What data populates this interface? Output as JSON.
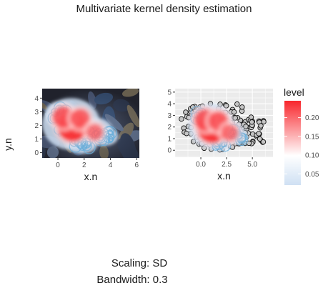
{
  "title": "Multivariate kernel density estimation",
  "y_axis_label": "y.n",
  "captions": {
    "scaling": "Scaling: SD",
    "bandwidth": "Bandwidth: 0.3"
  },
  "colors": {
    "level_high": "#f8262c",
    "level_mid": "#ffffff",
    "level_low": "#cfe0f3",
    "contour_line": "#6aaeda",
    "point_fill": "#c4c4c4",
    "panel_bg": "#ebebeb",
    "photo_dark": "#2a2a3a"
  },
  "chart_data": [
    {
      "type": "heatmap",
      "panel": "left",
      "background": "photo",
      "xlabel": "x.n",
      "ylabel": "",
      "xticks": [
        0,
        2,
        4,
        6
      ],
      "yticks": [
        0,
        1,
        2,
        3,
        4
      ],
      "xlim": [
        -1.2,
        6.2
      ],
      "ylim": [
        -0.4,
        4.7
      ],
      "points_shown": false,
      "density_peaks": [
        {
          "x": 1.1,
          "y": 1.9,
          "level": 0.23
        },
        {
          "x": 0.4,
          "y": 2.6,
          "level": 0.14
        },
        {
          "x": 1.7,
          "y": 2.5,
          "level": 0.12
        },
        {
          "x": 2.8,
          "y": 1.5,
          "level": 0.09
        }
      ]
    },
    {
      "type": "heatmap",
      "panel": "right",
      "background": "grid",
      "xlabel": "x.n",
      "ylabel": "",
      "xticks": [
        0,
        2.5,
        5
      ],
      "xtick_labels": [
        "0.0",
        "2.5",
        "5.0"
      ],
      "yticks": [
        0,
        1,
        2,
        3,
        4,
        5
      ],
      "xlim": [
        -2.5,
        7
      ],
      "ylim": [
        -0.6,
        5.3
      ],
      "points_shown": true,
      "density_peaks": [
        {
          "x": 1.1,
          "y": 1.9,
          "level": 0.23
        },
        {
          "x": 0.4,
          "y": 2.6,
          "level": 0.14
        },
        {
          "x": 1.7,
          "y": 2.5,
          "level": 0.12
        },
        {
          "x": 2.8,
          "y": 1.5,
          "level": 0.09
        }
      ]
    }
  ],
  "legend": {
    "title": "level",
    "ticks": [
      0.05,
      0.1,
      0.15,
      0.2
    ],
    "tick_labels": [
      "0.05",
      "0.10",
      "0.15",
      "0.20"
    ],
    "range": [
      0.02,
      0.245
    ]
  }
}
